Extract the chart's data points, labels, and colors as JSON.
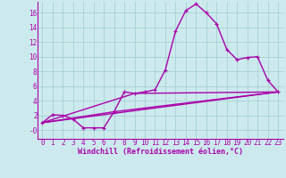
{
  "xlabel": "Windchill (Refroidissement éolien,°C)",
  "background_color": "#cceaed",
  "grid_color": "#aad4d8",
  "line_color": "#aa00aa",
  "xlim": [
    -0.5,
    23.5
  ],
  "ylim": [
    -1.2,
    17.5
  ],
  "xticks": [
    0,
    1,
    2,
    3,
    4,
    5,
    6,
    7,
    8,
    9,
    10,
    11,
    12,
    13,
    14,
    15,
    16,
    17,
    18,
    19,
    20,
    21,
    22,
    23
  ],
  "yticks": [
    0,
    2,
    4,
    6,
    8,
    10,
    12,
    14,
    16
  ],
  "ytick_labels": [
    "-0",
    "2",
    "4",
    "6",
    "8",
    "10",
    "12",
    "14",
    "16"
  ],
  "line1_x": [
    0,
    1,
    2,
    3,
    4,
    5,
    6,
    7,
    8,
    9,
    10,
    11,
    12,
    13,
    14,
    15,
    16,
    17,
    18,
    19,
    20,
    21,
    22,
    23
  ],
  "line1_y": [
    1.0,
    2.1,
    2.0,
    1.5,
    0.3,
    0.3,
    0.3,
    2.5,
    5.2,
    5.0,
    5.2,
    5.5,
    8.2,
    13.5,
    16.3,
    17.2,
    16.0,
    14.5,
    11.0,
    9.6,
    9.9,
    10.0,
    6.8,
    5.2
  ],
  "line2_x": [
    0,
    23
  ],
  "line2_y": [
    1.0,
    5.2
  ],
  "line3_x": [
    0,
    7,
    23
  ],
  "line3_y": [
    1.0,
    2.5,
    5.2
  ],
  "line4_x": [
    0,
    9,
    23
  ],
  "line4_y": [
    1.0,
    5.0,
    5.2
  ],
  "tick_fontsize": 5.5,
  "xlabel_fontsize": 6.0
}
